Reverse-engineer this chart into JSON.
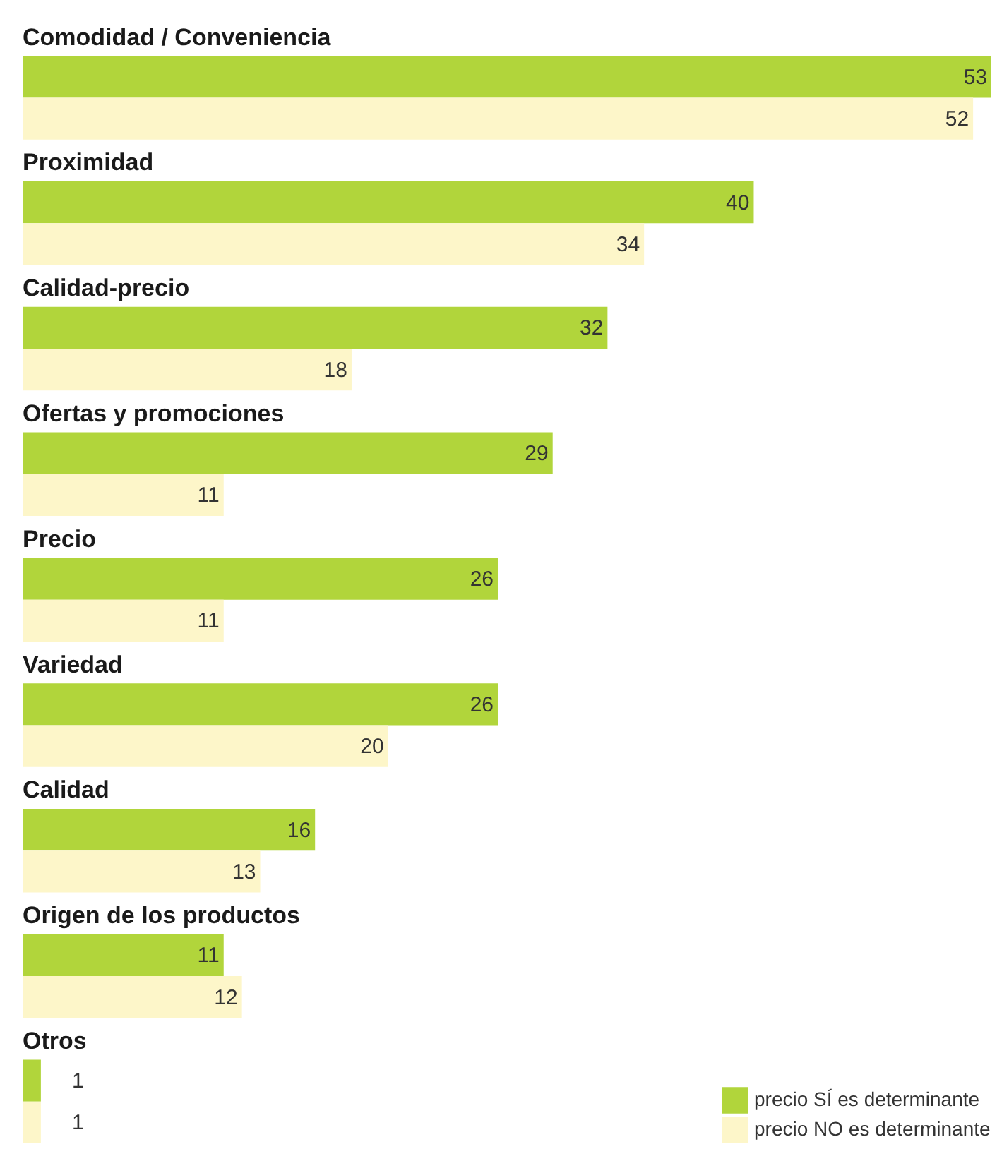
{
  "chart_data": {
    "type": "bar",
    "orientation": "horizontal",
    "data_labels": true,
    "legend": "bottom right",
    "categories": [
      "Comodidad / Conveniencia",
      "Proximidad",
      "Calidad-precio",
      "Ofertas y promociones",
      "Precio",
      "Variedad",
      "Calidad",
      "Origen de los productos",
      "Otros"
    ],
    "series": [
      {
        "name": "precio SÍ es determinante",
        "color": "#b1d53b",
        "values": [
          53,
          40,
          32,
          29,
          26,
          26,
          16,
          11,
          1
        ]
      },
      {
        "name": "precio NO es determinante",
        "color": "#fdf6c9",
        "values": [
          52,
          34,
          18,
          11,
          11,
          20,
          13,
          12,
          1
        ]
      }
    ]
  }
}
